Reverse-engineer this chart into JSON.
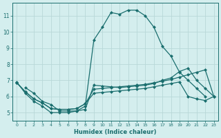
{
  "xlabel": "Humidex (Indice chaleur)",
  "background_color": "#d4eeee",
  "grid_color": "#b8d8d8",
  "line_color": "#1a6e6e",
  "xlim": [
    -0.5,
    23.5
  ],
  "ylim": [
    4.5,
    11.8
  ],
  "series": [
    {
      "x": [
        0,
        1,
        2,
        3,
        4,
        5,
        6,
        7,
        8,
        9,
        10,
        11,
        12,
        13,
        14,
        15,
        16,
        17,
        18,
        19,
        20,
        21,
        22
      ],
      "y": [
        6.9,
        6.2,
        5.7,
        5.4,
        5.0,
        5.0,
        5.0,
        5.1,
        5.4,
        9.5,
        10.3,
        11.2,
        11.1,
        11.35,
        11.35,
        11.0,
        10.3,
        9.1,
        8.5,
        7.5,
        7.0,
        6.5,
        6.0
      ]
    },
    {
      "x": [
        1,
        2,
        3,
        4,
        5,
        6,
        7,
        8,
        9,
        10,
        11,
        12,
        13,
        14,
        15,
        16,
        17,
        18,
        19,
        20,
        21,
        22,
        23
      ],
      "y": [
        6.55,
        6.2,
        5.7,
        5.5,
        5.1,
        5.1,
        5.1,
        5.2,
        6.7,
        6.65,
        6.6,
        6.55,
        6.6,
        6.65,
        6.7,
        6.8,
        7.0,
        7.15,
        7.55,
        7.75,
        7.0,
        6.5,
        6.0
      ]
    },
    {
      "x": [
        0,
        1,
        2,
        3,
        4,
        5,
        6,
        7,
        8,
        9,
        10,
        11,
        12,
        13,
        14,
        15,
        16,
        17,
        18,
        19,
        20,
        21,
        22,
        23
      ],
      "y": [
        6.85,
        6.3,
        5.85,
        5.6,
        5.25,
        5.2,
        5.2,
        5.25,
        5.55,
        6.45,
        6.5,
        6.55,
        6.6,
        6.65,
        6.7,
        6.75,
        6.85,
        6.95,
        7.05,
        7.2,
        7.35,
        7.5,
        7.65,
        6.0
      ]
    },
    {
      "x": [
        0,
        1,
        2,
        3,
        4,
        5,
        6,
        7,
        8,
        9,
        10,
        11,
        12,
        13,
        14,
        15,
        16,
        17,
        18,
        19,
        20,
        21,
        22,
        23
      ],
      "y": [
        6.85,
        6.3,
        5.85,
        5.6,
        5.25,
        5.2,
        5.2,
        5.25,
        5.55,
        6.2,
        6.25,
        6.3,
        6.35,
        6.4,
        6.45,
        6.5,
        6.6,
        6.7,
        6.8,
        6.9,
        6.0,
        5.85,
        5.75,
        6.0
      ]
    }
  ]
}
